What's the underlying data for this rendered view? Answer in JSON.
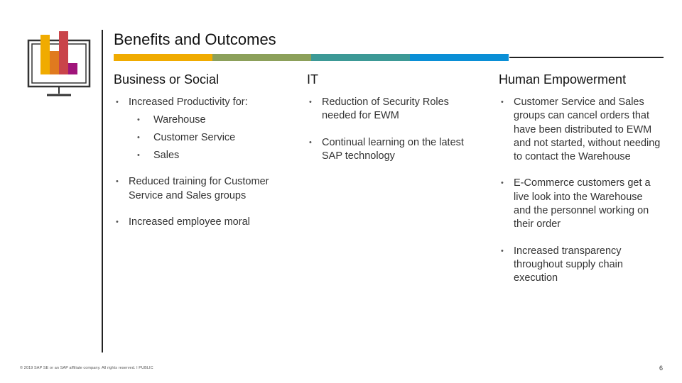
{
  "slide": {
    "title": "Benefits and Outcomes",
    "accent_colors": [
      "#f0ab00",
      "#8ca05a",
      "#3c9996",
      "#0a8fd6"
    ],
    "icon": "monitor-bar-chart-icon"
  },
  "columns": [
    {
      "heading": "Business or Social",
      "items": [
        {
          "text": "Increased Productivity for:",
          "sub": [
            "Warehouse",
            "Customer Service",
            "Sales"
          ]
        },
        {
          "text": "Reduced training for Customer Service and Sales groups"
        },
        {
          "text": "Increased employee moral"
        }
      ]
    },
    {
      "heading": "IT",
      "items": [
        {
          "text": "Reduction of Security Roles needed for EWM"
        },
        {
          "text": "Continual learning on the latest SAP technology"
        }
      ]
    },
    {
      "heading": "Human Empowerment",
      "items": [
        {
          "text": "Customer Service and Sales groups can cancel orders that have been distributed to EWM and not started, without needing to contact the Warehouse"
        },
        {
          "text": "E-Commerce customers get a live look into the Warehouse and the personnel working on their order"
        },
        {
          "text": "Increased transparency throughout supply chain execution"
        }
      ]
    }
  ],
  "footer": {
    "copyright": "© 2019 SAP SE or an SAP affiliate company. All rights reserved. ǀ PUBLIC",
    "page_number": "6"
  }
}
